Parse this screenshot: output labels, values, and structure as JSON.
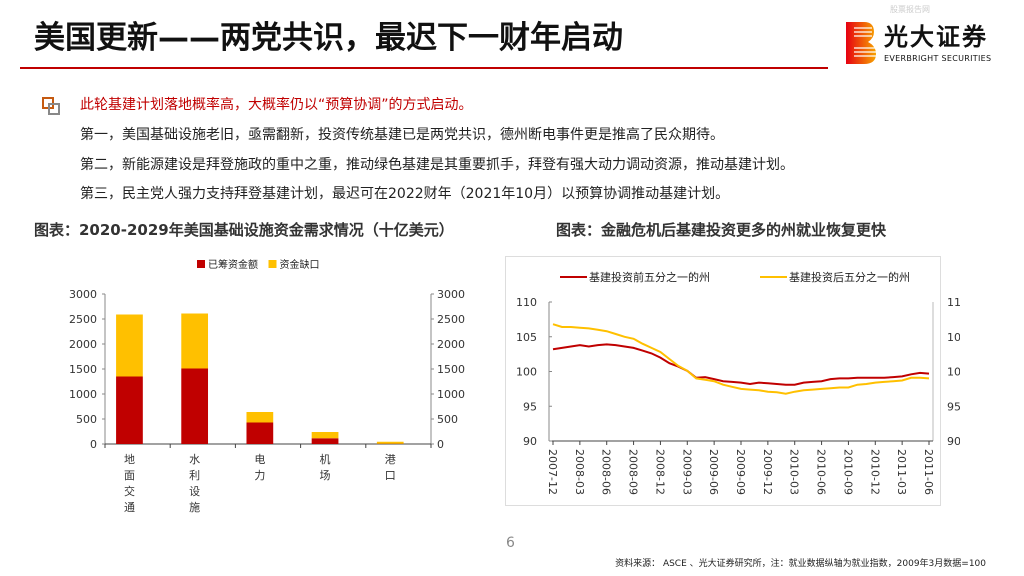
{
  "title": "美国更新——两党共识，最迟下一财年启动",
  "logo": {
    "cn": "光大证券",
    "en": "EVERBRIGHT SECURITIES",
    "watermark": "股票报告网"
  },
  "bullet": "此轮基建计划落地概率高，大概率仍以“预算协调”的方式启动。",
  "paragraphs": [
    "第一，美国基础设施老旧，亟需翻新，投资传统基建已是两党共识，德州断电事件更是推高了民众期待。",
    "第二，新能源建设是拜登施政的重中之重，推动绿色基建是其重要抓手，拜登有强大动力调动资源，推动基建计划。",
    "第三，民主党人强力支持拜登基建计划，最迟可在2022财年（2021年10月）以预算协调推动基建计划。"
  ],
  "page_number": "6",
  "source": "资料来源： ASCE 、光大证券研究所，注：就业数据纵轴为就业指数，2009年3月数据=100",
  "chart_data": [
    {
      "type": "bar",
      "stacked": true,
      "title": "图表：2020-2029年美国基础设施资金需求情况（十亿美元）",
      "categories": [
        "地面交通",
        "水利设施",
        "电力",
        "机场",
        "港口"
      ],
      "series": [
        {
          "name": "已筹资金额",
          "color": "#c00000",
          "values": [
            1350,
            1510,
            430,
            115,
            5
          ]
        },
        {
          "name": "资金缺口",
          "color": "#ffc000",
          "values": [
            1240,
            1100,
            210,
            125,
            40
          ]
        }
      ],
      "yticks": [
        0,
        500,
        1000,
        1500,
        2000,
        2500,
        3000
      ],
      "ylim": [
        0,
        3000
      ],
      "secondary_axis": true,
      "legend": "top"
    },
    {
      "type": "line",
      "title": "图表：金融危机后基建投资更多的州就业恢复更快",
      "x_start": "2007-12",
      "x_end": "2011-06",
      "frequency": "monthly",
      "xticks": [
        "2007-12",
        "2008-03",
        "2008-06",
        "2008-09",
        "2008-12",
        "2009-03",
        "2009-06",
        "2009-09",
        "2009-12",
        "2010-03",
        "2010-06",
        "2010-09",
        "2010-12",
        "2011-03",
        "2011-06"
      ],
      "yticks": [
        90,
        95,
        100,
        105,
        110
      ],
      "ylim": [
        90,
        110
      ],
      "secondary_axis": true,
      "legend": "top",
      "series": [
        {
          "name": "基建投资前五分之一的州",
          "color": "#c00000",
          "values": [
            103.2,
            103.4,
            103.6,
            103.8,
            103.6,
            103.8,
            103.9,
            103.8,
            103.6,
            103.4,
            103.0,
            102.6,
            102.0,
            101.2,
            100.7,
            100.1,
            99.1,
            99.2,
            98.9,
            98.6,
            98.5,
            98.4,
            98.2,
            98.4,
            98.3,
            98.2,
            98.1,
            98.1,
            98.4,
            98.5,
            98.6,
            98.9,
            99.0,
            99.0,
            99.1,
            99.1,
            99.1,
            99.1,
            99.2,
            99.3,
            99.6,
            99.8,
            99.7
          ]
        },
        {
          "name": "基建投资后五分之一的州",
          "color": "#ffc000",
          "values": [
            106.8,
            106.4,
            106.4,
            106.3,
            106.2,
            106.0,
            105.8,
            105.4,
            105.0,
            104.7,
            104.0,
            103.4,
            102.8,
            101.8,
            100.8,
            100.1,
            99.0,
            98.8,
            98.6,
            98.1,
            97.8,
            97.5,
            97.4,
            97.3,
            97.1,
            97.0,
            96.8,
            97.1,
            97.3,
            97.4,
            97.5,
            97.6,
            97.7,
            97.7,
            98.1,
            98.2,
            98.4,
            98.5,
            98.6,
            98.7,
            99.1,
            99.1,
            99.0
          ]
        }
      ]
    }
  ]
}
